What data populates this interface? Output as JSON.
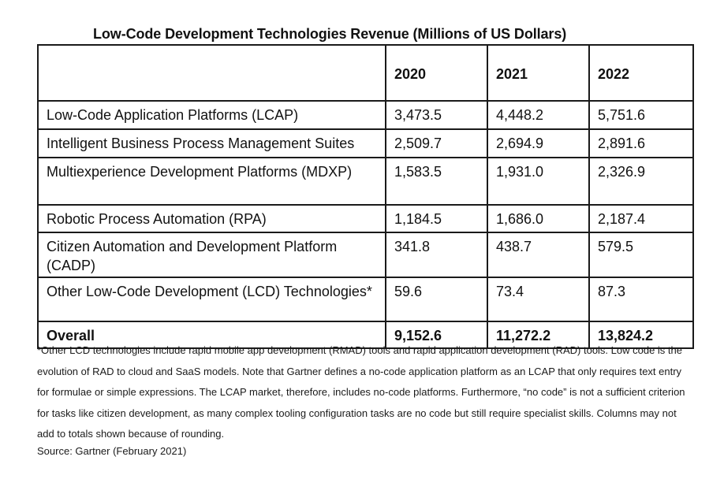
{
  "title": "Low-Code Development Technologies Revenue (Millions of US Dollars)",
  "table": {
    "header": [
      "",
      "2020",
      "2021",
      "2022"
    ],
    "rows": [
      {
        "label": "Low-Code Application Platforms (LCAP)",
        "values": [
          "3,473.5",
          "4,448.2",
          "5,751.6"
        ]
      },
      {
        "label": "Intelligent Business Process Management Suites",
        "values": [
          "2,509.7",
          "2,694.9",
          "2,891.6"
        ]
      },
      {
        "label": "Multiexperience Development Platforms (MDXP)",
        "values": [
          "1,583.5",
          "1,931.0",
          "2,326.9"
        ]
      },
      {
        "label": "Robotic Process Automation (RPA)",
        "values": [
          "1,184.5",
          "1,686.0",
          "2,187.4"
        ]
      },
      {
        "label": "Citizen Automation and Development Platform (CADP)",
        "values": [
          "341.8",
          "438.7",
          "579.5"
        ]
      },
      {
        "label": "Other Low-Code Development (LCD) Technologies*",
        "values": [
          "59.6",
          "73.4",
          "87.3"
        ]
      }
    ],
    "total": {
      "label": "Overall",
      "values": [
        "9,152.6",
        "11,272.2",
        "13,824.2"
      ]
    }
  },
  "footnote": "*Other LCD technologies include rapid mobile app development (RMAD) tools and rapid application development (RAD) tools. Low code is the evolution of RAD to cloud and SaaS models. Note that Gartner defines a no-code application platform as an LCAP that only requires text entry for formulae or simple expressions. The LCAP market, therefore, includes no-code platforms. Furthermore, “no code” is not a sufficient criterion for tasks like citizen development, as many complex tooling configuration tasks are no code but still require specialist skills. Columns may not add to totals shown because of rounding.",
  "source": "Source: Gartner (February 2021)"
}
